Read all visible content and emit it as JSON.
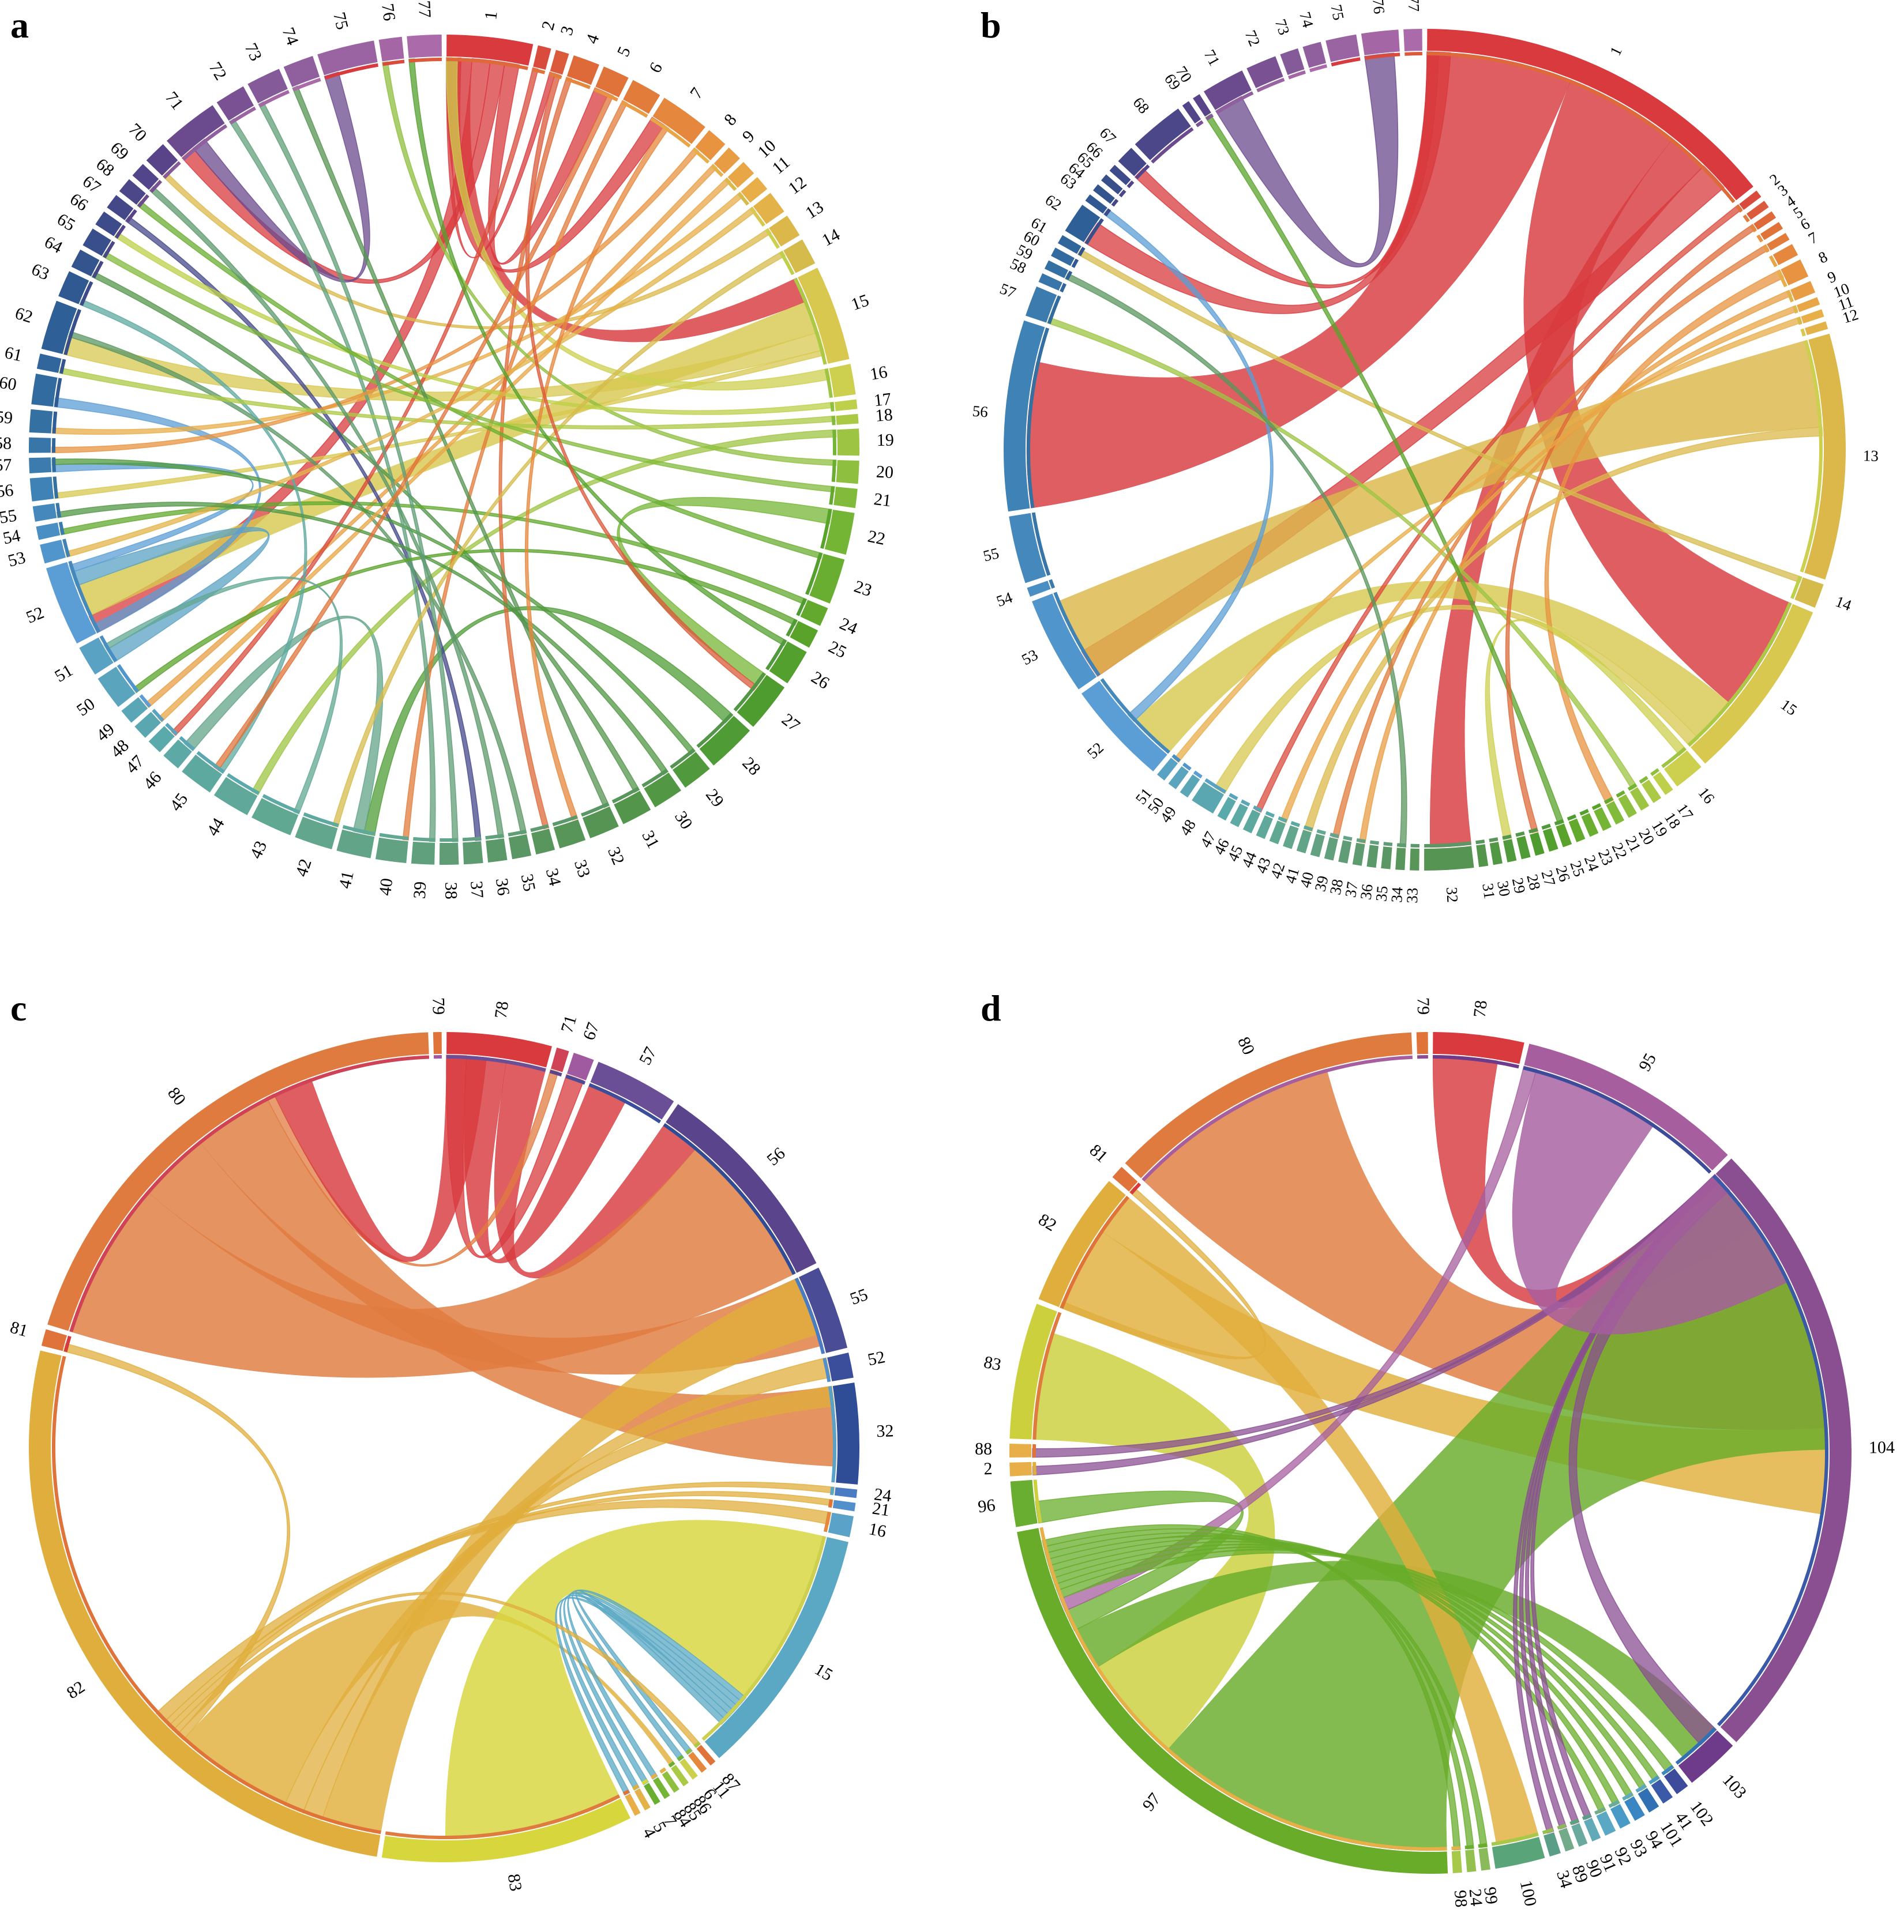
{
  "panels": [
    {
      "letter": "a",
      "labels": [
        "1",
        "2",
        "3",
        "4",
        "5",
        "6",
        "7",
        "8",
        "9",
        "10",
        "11",
        "12",
        "13",
        "14",
        "15",
        "16",
        "17",
        "18",
        "19",
        "20",
        "21",
        "22",
        "23",
        "24",
        "25",
        "26",
        "27",
        "28",
        "29",
        "30",
        "31",
        "32",
        "33",
        "34",
        "35",
        "36",
        "37",
        "38",
        "39",
        "40",
        "41",
        "42",
        "43",
        "44",
        "45",
        "46",
        "47",
        "48",
        "49",
        "50",
        "51",
        "52",
        "53",
        "54",
        "55",
        "56",
        "57",
        "58",
        "59",
        "60",
        "61",
        "62",
        "63",
        "64",
        "65",
        "66",
        "67",
        "68",
        "69",
        "70",
        "71",
        "72",
        "73",
        "74",
        "75",
        "76",
        "77"
      ],
      "weights": [
        4.5,
        0.7,
        0.7,
        1.4,
        1.4,
        1.6,
        2.6,
        1.1,
        0.8,
        0.8,
        0.8,
        1.2,
        1.2,
        1.4,
        5.0,
        1.6,
        0.5,
        0.5,
        1.4,
        1.2,
        1.0,
        2.2,
        2.4,
        1.0,
        1.0,
        1.9,
        2.6,
        2.6,
        1.6,
        1.6,
        1.6,
        1.6,
        1.4,
        1.0,
        1.0,
        1.0,
        1.0,
        1.0,
        1.2,
        1.6,
        1.8,
        2.0,
        2.2,
        2.0,
        1.8,
        1.0,
        0.8,
        0.8,
        0.8,
        1.8,
        1.6,
        4.2,
        1.0,
        0.7,
        0.8,
        1.2,
        0.8,
        0.8,
        1.2,
        1.6,
        0.8,
        2.6,
        1.4,
        1.0,
        1.0,
        0.8,
        0.8,
        0.8,
        0.8,
        1.2,
        3.0,
        1.6,
        1.8,
        1.6,
        3.0,
        1.2,
        1.8
      ],
      "colors": [
        "#d83a3e",
        "#d94b3c",
        "#db5a3b",
        "#de6a3a",
        "#e0733a",
        "#e27c3b",
        "#e5873c",
        "#e79340",
        "#e89d44",
        "#e8a646",
        "#e8ae48",
        "#e3b34a",
        "#dcb84b",
        "#d5bb4c",
        "#d8c850",
        "#cdd04f",
        "#bed04a",
        "#acc946",
        "#9ec443",
        "#8fbf3f",
        "#82ba3b",
        "#75b536",
        "#6aae31",
        "#62a92e",
        "#5aa32b",
        "#54a02e",
        "#4e9c30",
        "#4f9c36",
        "#50993d",
        "#519744",
        "#53954b",
        "#559452",
        "#579558",
        "#59965e",
        "#5b9764",
        "#5c996a",
        "#5e9b70",
        "#609d76",
        "#61a07c",
        "#62a282",
        "#62a488",
        "#62a68e",
        "#61a893",
        "#60a899",
        "#5ea99f",
        "#5ca9a5",
        "#5aa9ab",
        "#5aa7b1",
        "#5aa6b7",
        "#5aa4bd",
        "#5aa2c3",
        "#5b9ed6",
        "#5096cc",
        "#4a8fc4",
        "#4488bc",
        "#3f82b5",
        "#3b7bae",
        "#3875a8",
        "#3570a3",
        "#326b9f",
        "#30669b",
        "#2e5f97",
        "#305992",
        "#34548e",
        "#384f8c",
        "#3d4b8a",
        "#444889",
        "#4b4789",
        "#534589",
        "#5a4489",
        "#6b4a8e",
        "#7a5294",
        "#855a99",
        "#8f5f9e",
        "#9a63a2",
        "#a466a5",
        "#ab6aa9"
      ],
      "ribbons": [
        [
          0,
          14,
          1.4
        ],
        [
          0,
          51,
          1.0
        ],
        [
          14,
          51,
          1.8
        ],
        [
          14,
          61,
          1.0
        ],
        [
          0,
          70,
          0.8
        ],
        [
          0,
          4,
          0.8
        ],
        [
          0,
          6,
          0.8
        ],
        [
          0,
          2,
          0.3
        ],
        [
          14,
          55,
          0.3
        ],
        [
          15,
          0,
          0.6
        ],
        [
          70,
          74,
          0.8
        ],
        [
          21,
          26,
          0.8
        ],
        [
          27,
          40,
          0.6
        ],
        [
          40,
          45,
          0.6
        ],
        [
          50,
          51,
          0.8
        ],
        [
          51,
          56,
          0.4
        ],
        [
          51,
          59,
          0.5
        ],
        [
          18,
          43,
          0.4
        ],
        [
          30,
          63,
          0.3
        ],
        [
          8,
          48,
          0.3
        ],
        [
          10,
          58,
          0.3
        ],
        [
          66,
          36,
          0.3
        ],
        [
          23,
          53,
          0.3
        ],
        [
          12,
          69,
          0.3
        ],
        [
          5,
          39,
          0.3
        ],
        [
          34,
          61,
          0.3
        ],
        [
          1,
          46,
          0.3
        ],
        [
          19,
          75,
          0.3
        ],
        [
          28,
          56,
          0.3
        ],
        [
          3,
          33,
          0.3
        ],
        [
          38,
          71,
          0.3
        ],
        [
          24,
          49,
          0.3
        ],
        [
          16,
          65,
          0.3
        ],
        [
          44,
          62,
          0.3
        ],
        [
          7,
          57,
          0.3
        ],
        [
          13,
          41,
          0.3
        ],
        [
          22,
          67,
          0.3
        ],
        [
          31,
          73,
          0.3
        ],
        [
          9,
          47,
          0.3
        ],
        [
          17,
          60,
          0.3
        ],
        [
          11,
          52,
          0.3
        ],
        [
          20,
          64,
          0.3
        ],
        [
          25,
          76,
          0.3
        ],
        [
          29,
          54,
          0.3
        ],
        [
          35,
          68,
          0.3
        ],
        [
          37,
          72,
          0.3
        ],
        [
          42,
          50,
          0.3
        ],
        [
          6,
          32,
          0.3
        ],
        [
          2,
          26,
          0.3
        ],
        [
          4,
          44,
          0.3
        ]
      ]
    },
    {
      "letter": "b",
      "labels": [
        "1",
        "2",
        "3",
        "4",
        "5",
        "6",
        "7",
        "8",
        "9",
        "10",
        "11",
        "12",
        "13",
        "14",
        "15",
        "16",
        "17",
        "18",
        "19",
        "20",
        "21",
        "22",
        "23",
        "24",
        "25",
        "26",
        "27",
        "28",
        "29",
        "30",
        "31",
        "32",
        "33",
        "34",
        "35",
        "36",
        "37",
        "38",
        "39",
        "40",
        "41",
        "42",
        "43",
        "44",
        "45",
        "46",
        "47",
        "48",
        "49",
        "50",
        "51",
        "52",
        "53",
        "54",
        "55",
        "56",
        "57",
        "58",
        "59",
        "60",
        "61",
        "62",
        "63",
        "64",
        "65",
        "66",
        "67",
        "68",
        "69",
        "70",
        "71",
        "72",
        "73",
        "74",
        "75",
        "76",
        "77"
      ],
      "weights": [
        12.0,
        0.25,
        0.25,
        0.25,
        0.25,
        0.25,
        0.4,
        0.6,
        0.4,
        0.25,
        0.25,
        0.25,
        8.0,
        0.8,
        6.0,
        1.0,
        0.3,
        0.3,
        0.3,
        0.3,
        0.3,
        0.3,
        0.3,
        0.3,
        0.3,
        0.3,
        0.3,
        0.3,
        0.3,
        0.3,
        0.3,
        1.6,
        0.3,
        0.3,
        0.3,
        0.3,
        0.3,
        0.3,
        0.3,
        0.3,
        0.3,
        0.3,
        0.3,
        0.3,
        0.3,
        0.3,
        0.3,
        0.8,
        0.3,
        0.3,
        0.3,
        3.4,
        3.2,
        0.3,
        2.2,
        6.2,
        1.0,
        0.3,
        0.3,
        0.3,
        0.3,
        1.0,
        0.25,
        0.25,
        0.25,
        0.25,
        0.6,
        1.8,
        0.25,
        0.25,
        1.4,
        1.0,
        0.6,
        0.6,
        1.0,
        1.2,
        0.6
      ],
      "colors": [
        "#d83a3e",
        "#d94b3c",
        "#db5a3b",
        "#de6a3a",
        "#e0733a",
        "#e27c3b",
        "#e5873c",
        "#e79340",
        "#e89d44",
        "#e8a646",
        "#e8ae48",
        "#e3b34a",
        "#dcb84b",
        "#d5bb4c",
        "#d8c850",
        "#cdd04f",
        "#bed04a",
        "#acc946",
        "#9ec443",
        "#8fbf3f",
        "#82ba3b",
        "#75b536",
        "#6aae31",
        "#62a92e",
        "#5aa32b",
        "#54a02e",
        "#4e9c30",
        "#4f9c36",
        "#50993d",
        "#519744",
        "#53954b",
        "#559452",
        "#579558",
        "#59965e",
        "#5b9764",
        "#5c996a",
        "#5e9b70",
        "#609d76",
        "#61a07c",
        "#62a282",
        "#62a488",
        "#62a68e",
        "#61a893",
        "#60a899",
        "#5ea99f",
        "#5ca9a5",
        "#5aa9ab",
        "#5aa7b1",
        "#5aa6b7",
        "#5aa4bd",
        "#5aa2c3",
        "#5b9ed6",
        "#5096cc",
        "#4a8fc4",
        "#4488bc",
        "#3f82b5",
        "#3b7bae",
        "#3875a8",
        "#3570a3",
        "#326b9f",
        "#30669b",
        "#2e5f97",
        "#305992",
        "#34548e",
        "#384f8c",
        "#3d4b8a",
        "#444889",
        "#4b4789",
        "#534589",
        "#5a4489",
        "#6b4a8e",
        "#7a5294",
        "#855a99",
        "#8f5f9e",
        "#9a63a2",
        "#a466a5",
        "#ab6aa9"
      ],
      "ribbons": [
        [
          0,
          55,
          5.0
        ],
        [
          0,
          14,
          4.0
        ],
        [
          0,
          31,
          1.4
        ],
        [
          0,
          52,
          1.0
        ],
        [
          12,
          52,
          3.0
        ],
        [
          14,
          51,
          1.6
        ],
        [
          0,
          61,
          0.8
        ],
        [
          0,
          66,
          0.4
        ],
        [
          70,
          75,
          1.0
        ],
        [
          14,
          47,
          0.4
        ],
        [
          51,
          62,
          0.3
        ],
        [
          7,
          20,
          0.3
        ],
        [
          12,
          40,
          0.3
        ],
        [
          15,
          28,
          0.3
        ],
        [
          1,
          44,
          0.2
        ],
        [
          8,
          36,
          0.2
        ],
        [
          10,
          50,
          0.2
        ],
        [
          13,
          60,
          0.2
        ],
        [
          18,
          56,
          0.2
        ],
        [
          24,
          69,
          0.2
        ],
        [
          33,
          58,
          0.2
        ],
        [
          3,
          26,
          0.2
        ],
        [
          5,
          38,
          0.2
        ],
        [
          9,
          42,
          0.2
        ]
      ]
    },
    {
      "letter": "c",
      "labels": [
        "78",
        "71",
        "67",
        "57",
        "56",
        "55",
        "52",
        "32",
        "24",
        "21",
        "16",
        "15",
        "87",
        "11",
        "6",
        "86",
        "85",
        "84",
        "7",
        "5",
        "4",
        "83",
        "82",
        "81",
        "80",
        "79"
      ],
      "weights": [
        5.0,
        0.6,
        1.0,
        4.0,
        10.0,
        4.0,
        1.2,
        4.8,
        0.4,
        0.4,
        1.0,
        12.0,
        0.3,
        0.3,
        0.3,
        0.3,
        0.3,
        0.3,
        0.3,
        0.3,
        0.3,
        12.0,
        32.0,
        0.8,
        24.0,
        0.4
      ],
      "colors": [
        "#d83a3e",
        "#d04256",
        "#a05aa0",
        "#6a4f96",
        "#5a448c",
        "#4a4c96",
        "#3a4e9c",
        "#2f4d96",
        "#4a7cc4",
        "#5290cc",
        "#5aa2c8",
        "#5aa8c4",
        "#e0733a",
        "#e5873c",
        "#cdd04f",
        "#acc946",
        "#8fbf3f",
        "#75b536",
        "#6aae31",
        "#e3b34a",
        "#e8ae48",
        "#d7d63d",
        "#e0ae3c",
        "#e0733a",
        "#e07b40",
        "#e0733a"
      ],
      "ribbons": [
        [
          0,
          2,
          1.0
        ],
        [
          0,
          3,
          2.0
        ],
        [
          0,
          4,
          2.0
        ],
        [
          24,
          4,
          8.0
        ],
        [
          24,
          5,
          3.6
        ],
        [
          24,
          7,
          4.0
        ],
        [
          22,
          5,
          3.0
        ],
        [
          22,
          6,
          1.0
        ],
        [
          22,
          7,
          1.0
        ],
        [
          22,
          15,
          6.0
        ],
        [
          21,
          11,
          9.0
        ],
        [
          22,
          23,
          0.4
        ],
        [
          11,
          17,
          0.3
        ],
        [
          11,
          18,
          0.3
        ],
        [
          11,
          19,
          0.3
        ],
        [
          11,
          20,
          0.3
        ],
        [
          11,
          13,
          0.3
        ],
        [
          11,
          14,
          0.3
        ],
        [
          22,
          12,
          0.3
        ],
        [
          24,
          1,
          0.4
        ],
        [
          0,
          24,
          2.0
        ],
        [
          22,
          9,
          0.3
        ],
        [
          22,
          8,
          0.3
        ],
        [
          22,
          10,
          0.6
        ]
      ]
    },
    {
      "letter": "d",
      "labels": [
        "78",
        "95",
        "104",
        "103",
        "102",
        "41",
        "101",
        "94",
        "93",
        "92",
        "91",
        "90",
        "89",
        "34",
        "100",
        "99",
        "24",
        "98",
        "97",
        "96",
        "2",
        "88",
        "83",
        "82",
        "81",
        "80",
        "79"
      ],
      "weights": [
        4.0,
        10.0,
        28.0,
        2.4,
        0.6,
        0.5,
        0.5,
        0.5,
        0.5,
        0.5,
        0.4,
        0.4,
        0.4,
        0.5,
        2.2,
        0.4,
        0.4,
        0.4,
        26.0,
        2.0,
        0.6,
        0.6,
        6.0,
        6.0,
        0.6,
        14.0,
        0.5
      ],
      "colors": [
        "#d83a3e",
        "#a65e9f",
        "#8a4f91",
        "#6e3b8a",
        "#3c4c9a",
        "#3a5aa8",
        "#3270b4",
        "#3a86c2",
        "#4a9ac8",
        "#5aa8c4",
        "#62aab8",
        "#6aaa9e",
        "#72aa8a",
        "#5a9e88",
        "#5aa47a",
        "#8aba5a",
        "#94c050",
        "#a8c84a",
        "#68ac2a",
        "#6aae31",
        "#e8ae48",
        "#e8ae48",
        "#ccd03c",
        "#e0ae3c",
        "#e0733a",
        "#e07b40",
        "#e0733a"
      ],
      "ribbons": [
        [
          0,
          2,
          3.0
        ],
        [
          25,
          2,
          10.0
        ],
        [
          23,
          2,
          4.0
        ],
        [
          18,
          2,
          14.0
        ],
        [
          22,
          18,
          5.0
        ],
        [
          18,
          3,
          2.0
        ],
        [
          2,
          3,
          1.0
        ],
        [
          23,
          14,
          2.0
        ],
        [
          18,
          19,
          1.0
        ],
        [
          1,
          18,
          0.6
        ],
        [
          18,
          4,
          0.4
        ],
        [
          18,
          5,
          0.3
        ],
        [
          18,
          6,
          0.3
        ],
        [
          18,
          7,
          0.3
        ],
        [
          18,
          8,
          0.3
        ],
        [
          18,
          9,
          0.3
        ],
        [
          2,
          10,
          0.3
        ],
        [
          2,
          11,
          0.3
        ],
        [
          2,
          12,
          0.3
        ],
        [
          2,
          13,
          0.3
        ],
        [
          18,
          15,
          0.3
        ],
        [
          18,
          16,
          0.3
        ],
        [
          18,
          17,
          0.3
        ],
        [
          2,
          20,
          0.4
        ],
        [
          2,
          21,
          0.4
        ],
        [
          23,
          24,
          0.3
        ],
        [
          1,
          2,
          6.0
        ]
      ]
    }
  ]
}
